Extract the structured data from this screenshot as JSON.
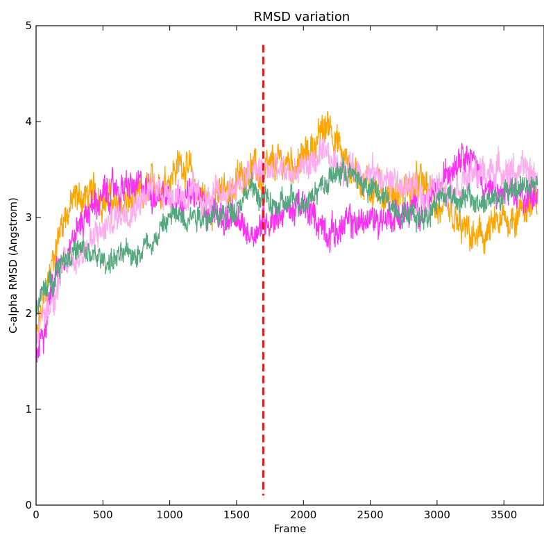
{
  "chart_data": {
    "type": "line",
    "title": "RMSD variation",
    "xlabel": "Frame",
    "ylabel": "C-alpha RMSD (Angstrom)",
    "xlim": [
      0,
      3800
    ],
    "ylim": [
      0,
      5
    ],
    "x_ticks": [
      0,
      500,
      1000,
      1500,
      2000,
      2500,
      3000,
      3500
    ],
    "y_ticks": [
      0,
      1,
      2,
      3,
      4,
      5
    ],
    "grid": false,
    "legend": "none",
    "vline": {
      "x": 1700,
      "ymin": 0.1,
      "ymax": 4.8,
      "color": "#e41a1c",
      "style": "dashed"
    },
    "noise_points_per_series": 1500,
    "series": [
      {
        "color": "#ffa500",
        "noise": 0.22,
        "x": [
          0,
          100,
          200,
          300,
          500,
          600,
          800,
          1000,
          1100,
          1200,
          1300,
          1500,
          1600,
          1700,
          1800,
          2000,
          2200,
          2300,
          2500,
          2700,
          2900,
          3000,
          3100,
          3300,
          3500,
          3700,
          3750
        ],
        "y": [
          1.7,
          2.4,
          3.0,
          3.2,
          3.25,
          3.1,
          3.2,
          3.45,
          3.6,
          3.3,
          3.15,
          3.35,
          3.55,
          3.4,
          3.55,
          3.6,
          4.0,
          3.6,
          3.3,
          3.25,
          3.35,
          3.1,
          2.95,
          2.75,
          2.95,
          3.15,
          3.1
        ]
      },
      {
        "color": "#ff2ef5",
        "noise": 0.2,
        "x": [
          0,
          100,
          200,
          400,
          600,
          800,
          1000,
          1200,
          1400,
          1600,
          1700,
          1800,
          2000,
          2200,
          2400,
          2600,
          2800,
          3000,
          3100,
          3200,
          3400,
          3600,
          3750
        ],
        "y": [
          1.5,
          2.2,
          2.6,
          3.1,
          3.3,
          3.3,
          3.25,
          3.2,
          3.0,
          2.85,
          2.95,
          3.05,
          3.1,
          2.85,
          2.95,
          3.0,
          3.05,
          3.2,
          3.55,
          3.75,
          3.25,
          3.2,
          3.3
        ]
      },
      {
        "color": "#ffaaee",
        "noise": 0.2,
        "x": [
          0,
          100,
          200,
          300,
          500,
          700,
          900,
          1100,
          1300,
          1500,
          1700,
          1900,
          2100,
          2300,
          2500,
          2700,
          2900,
          3100,
          3300,
          3500,
          3700,
          3750
        ],
        "y": [
          1.8,
          2.1,
          2.45,
          2.6,
          2.85,
          3.15,
          3.3,
          3.25,
          3.15,
          3.35,
          3.5,
          3.45,
          3.6,
          3.55,
          3.45,
          3.35,
          3.25,
          3.35,
          3.45,
          3.5,
          3.45,
          3.4
        ]
      },
      {
        "color": "#55a87e",
        "noise": 0.16,
        "x": [
          0,
          100,
          200,
          300,
          500,
          700,
          900,
          1000,
          1200,
          1400,
          1500,
          1600,
          1700,
          1800,
          2000,
          2200,
          2300,
          2500,
          2700,
          2900,
          3000,
          3100,
          3300,
          3500,
          3600,
          3750
        ],
        "y": [
          2.1,
          2.3,
          2.6,
          2.65,
          2.55,
          2.6,
          2.8,
          3.0,
          3.05,
          3.0,
          3.15,
          3.3,
          3.2,
          3.1,
          3.2,
          3.4,
          3.5,
          3.3,
          3.1,
          3.0,
          3.2,
          3.25,
          3.15,
          3.2,
          3.35,
          3.3
        ]
      }
    ]
  }
}
